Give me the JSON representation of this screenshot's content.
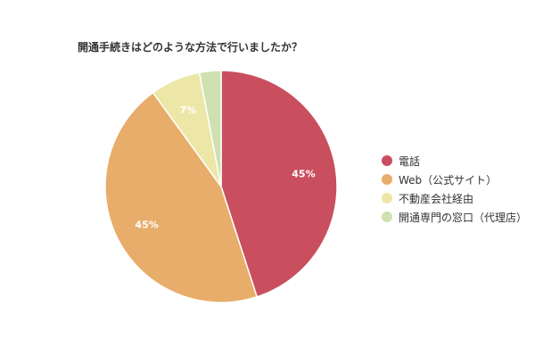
{
  "chart_data": {
    "type": "pie",
    "title": "開通手続きはどのような方法で行いましたか？",
    "categories": [
      "電話",
      "Web（公式サイト）",
      "不動産会社経由",
      "開通専門の窓口（代理店）"
    ],
    "values": [
      45,
      45,
      7,
      3
    ],
    "data_labels": [
      "45%",
      "45%",
      "7%",
      ""
    ],
    "colors": [
      "#c94f5e",
      "#e8ad6a",
      "#ece7a6",
      "#cfe0b1"
    ],
    "legend_position": "right"
  }
}
